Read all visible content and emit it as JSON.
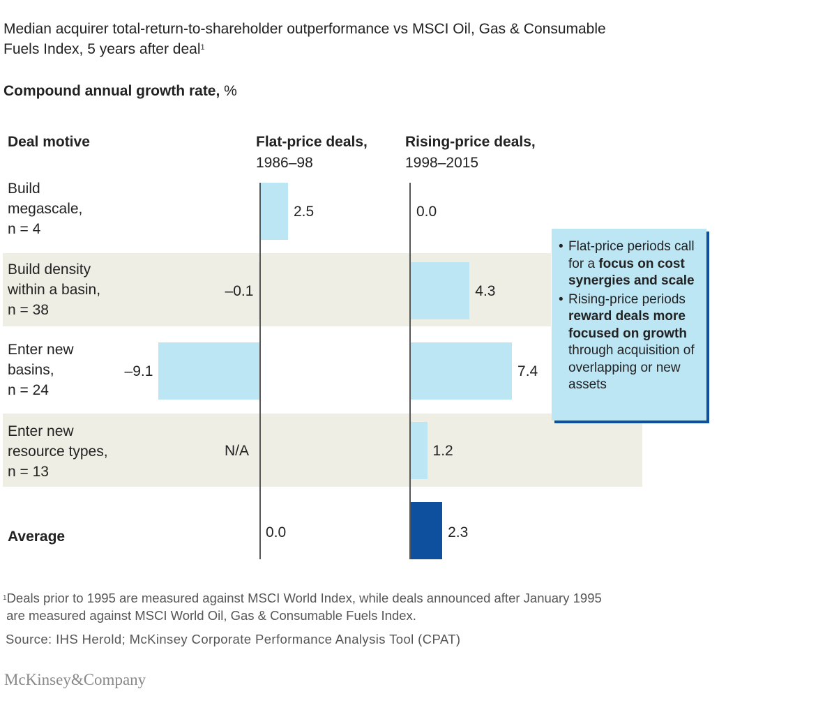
{
  "chart_data": {
    "type": "bar",
    "title": "Median acquirer total-return-to-shareholder outperformance vs MSCI Oil, Gas & Consumable Fuels Index, 5 years after deal",
    "title_footnote": "1",
    "subtitle_bold": "Compound annual growth rate,",
    "subtitle_unit": " %",
    "category_header": "Deal motive",
    "categories": [
      [
        "Build",
        "megascale,",
        "n = 4"
      ],
      [
        "Build density",
        "within a basin,",
        "n = 38"
      ],
      [
        "Enter new",
        "basins,",
        "n = 24"
      ],
      [
        "Enter new",
        "resource types,",
        "n = 13"
      ],
      [
        "Average"
      ]
    ],
    "series": [
      {
        "name": "Flat-price deals,",
        "period": "1986–98",
        "values": [
          2.5,
          -0.1,
          -9.1,
          null,
          0.0
        ],
        "labels": [
          "2.5",
          "–0.1",
          "–9.1",
          "N/A",
          "0.0"
        ]
      },
      {
        "name": "Rising-price deals,",
        "period": "1998–2015",
        "values": [
          0.0,
          4.3,
          7.4,
          1.2,
          2.3
        ],
        "labels": [
          "0.0",
          "4.3",
          "7.4",
          "1.2",
          "2.3"
        ]
      }
    ],
    "colors": {
      "bar": "#bde6f5",
      "average_rising": "#0e4f9e",
      "band": "#efeee4"
    }
  },
  "callout": {
    "item1": {
      "pre": "Flat-price periods call for a ",
      "bold": "focus on cost synergies and scale"
    },
    "item2": {
      "pre": "Rising-price periods ",
      "bold": "reward deals more focused on growth",
      "post": " through acquisition of overlapping or new assets"
    }
  },
  "footnote": {
    "marker": "1",
    "text": "Deals prior to 1995 are measured against MSCI World Index, while deals announced after January 1995",
    "text2": "are measured against MSCI World Oil, Gas & Consumable Fuels Index."
  },
  "source": "Source: IHS Herold; McKinsey Corporate Performance Analysis Tool (CPAT)",
  "logo": "McKinsey&Company"
}
